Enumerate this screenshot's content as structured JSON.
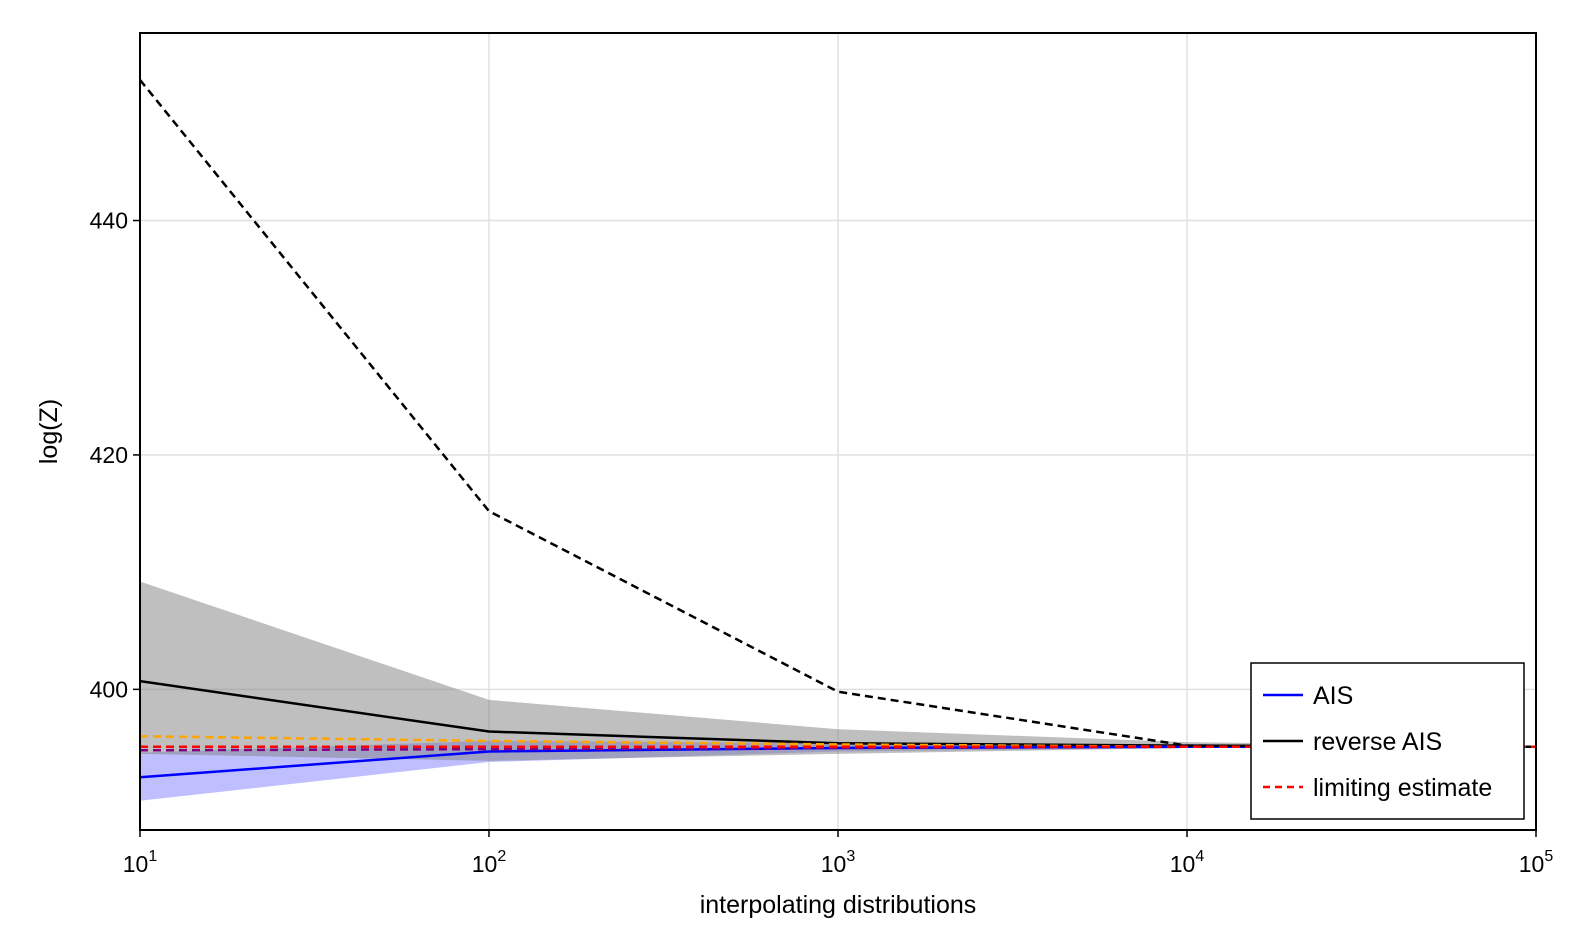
{
  "chart_data": {
    "type": "line",
    "title": "",
    "xlabel": "interpolating distributions",
    "ylabel": "log(Z)",
    "xscale": "log10",
    "xlim": [
      10,
      100000
    ],
    "ylim": [
      388,
      456
    ],
    "x_ticks": [
      {
        "value": 10,
        "base": "10",
        "exp": "1"
      },
      {
        "value": 100,
        "base": "10",
        "exp": "2"
      },
      {
        "value": 1000,
        "base": "10",
        "exp": "3"
      },
      {
        "value": 10000,
        "base": "10",
        "exp": "4"
      },
      {
        "value": 100000,
        "base": "10",
        "exp": "5"
      }
    ],
    "y_ticks": [
      {
        "value": 400,
        "label": "400"
      },
      {
        "value": 420,
        "label": "420"
      },
      {
        "value": 440,
        "label": "440"
      }
    ],
    "grid": true,
    "legend_position": "bottom-right",
    "x": [
      10,
      100,
      1000,
      10000,
      100000
    ],
    "series": [
      {
        "name": "AIS",
        "color": "#0000ff",
        "style": "solid",
        "in_legend": true,
        "values": [
          392.5,
          394.7,
          395.0,
          395.1,
          395.1
        ],
        "band": {
          "lower": [
            390.5,
            393.8,
            394.7,
            395.0,
            395.1
          ],
          "upper": [
            394.6,
            395.6,
            395.4,
            395.2,
            395.1
          ],
          "color": "#8080ff",
          "opacity": 0.5
        }
      },
      {
        "name": "reverse AIS",
        "color": "#000000",
        "style": "solid",
        "in_legend": true,
        "values": [
          400.7,
          396.4,
          395.4,
          395.2,
          395.1
        ],
        "band": {
          "lower": [
            394.5,
            393.9,
            394.5,
            395.0,
            395.1
          ],
          "upper": [
            409.2,
            399.1,
            396.6,
            395.5,
            395.1
          ],
          "color": "#808080",
          "opacity": 0.5
        }
      },
      {
        "name": "limiting estimate",
        "color": "#ff0000",
        "style": "dashed",
        "in_legend": true,
        "values": [
          395.1,
          395.1,
          395.1,
          395.1,
          395.1
        ]
      },
      {
        "name": "reverse AIS (dashed)",
        "color": "#000000",
        "style": "dashed",
        "in_legend": false,
        "values": [
          452.0,
          415.2,
          399.8,
          395.2,
          395.1
        ]
      },
      {
        "name": "orange estimate",
        "color": "#ffa500",
        "style": "dashed",
        "in_legend": false,
        "values": [
          396.0,
          395.6,
          395.3,
          395.1,
          395.1
        ]
      },
      {
        "name": "purple estimate",
        "color": "#800080",
        "style": "dashed",
        "in_legend": false,
        "values": [
          394.8,
          394.9,
          395.0,
          395.1,
          395.1
        ]
      }
    ]
  }
}
